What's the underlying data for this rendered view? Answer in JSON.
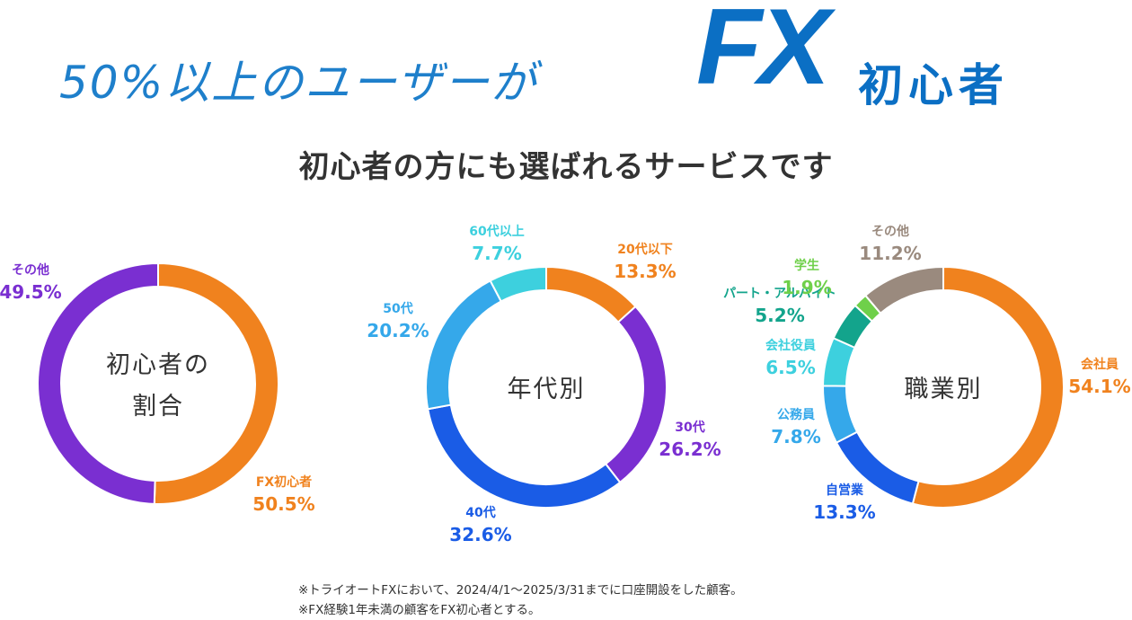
{
  "headline": {
    "main": "50%以上のユーザーが",
    "fx": "FX",
    "tail": "初心者"
  },
  "subheadline": "初心者の方にも選ばれるサービスです",
  "chart_data": [
    {
      "type": "donut",
      "center_label": [
        "初心者の",
        "割合"
      ],
      "series": [
        {
          "name": "FX初心者",
          "value": 50.5,
          "label": "50.5%",
          "color": "#f0821e"
        },
        {
          "name": "その他",
          "value": 49.5,
          "label": "49.5%",
          "color": "#7a2fd1"
        }
      ]
    },
    {
      "type": "donut",
      "center_label": [
        "年代別"
      ],
      "series": [
        {
          "name": "20代以下",
          "value": 13.3,
          "label": "13.3%",
          "color": "#f0821e"
        },
        {
          "name": "30代",
          "value": 26.2,
          "label": "26.2%",
          "color": "#7a2fd1"
        },
        {
          "name": "40代",
          "value": 32.6,
          "label": "32.6%",
          "color": "#1a5ce6"
        },
        {
          "name": "50代",
          "value": 20.2,
          "label": "20.2%",
          "color": "#35a8ea"
        },
        {
          "name": "60代以上",
          "value": 7.7,
          "label": "7.7%",
          "color": "#3dd0de"
        }
      ]
    },
    {
      "type": "donut",
      "center_label": [
        "職業別"
      ],
      "series": [
        {
          "name": "会社員",
          "value": 54.1,
          "label": "54.1%",
          "color": "#f0821e"
        },
        {
          "name": "自営業",
          "value": 13.3,
          "label": "13.3%",
          "color": "#1a5ce6"
        },
        {
          "name": "公務員",
          "value": 7.8,
          "label": "7.8%",
          "color": "#35a8ea"
        },
        {
          "name": "会社役員",
          "value": 6.5,
          "label": "6.5%",
          "color": "#3dd0de"
        },
        {
          "name": "パート・アルバイト",
          "value": 5.2,
          "label": "5.2%",
          "color": "#13a48c"
        },
        {
          "name": "学生",
          "value": 1.9,
          "label": "1.9%",
          "color": "#6fd04a"
        },
        {
          "name": "その他",
          "value": 11.2,
          "label": "11.2%",
          "color": "#9a8a7e"
        }
      ]
    }
  ],
  "footnotes": [
    "※トライオートFXにおいて、2024/4/1～2025/3/31までに口座開設をした顧客。",
    "※FX経験1年未満の顧客をFX初心者とする。"
  ]
}
